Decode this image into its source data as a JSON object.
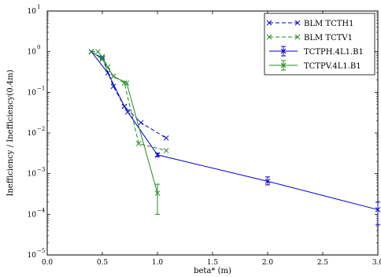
{
  "chart_data": {
    "type": "line",
    "xlabel": "beta* (m)",
    "ylabel": "Inefficiency / Inefficiency(0.4m)",
    "xlim": [
      0.0,
      3.0
    ],
    "ylim": [
      1e-05,
      10
    ],
    "yscale": "log",
    "grid": false,
    "legend_position": "top-right",
    "x_ticks": [
      "0.0",
      "0.5",
      "1.0",
      "1.5",
      "2.0",
      "2.5",
      "3.0"
    ],
    "y_ticks": [
      {
        "value": 10,
        "base": "10",
        "exp": "1"
      },
      {
        "value": 1,
        "base": "10",
        "exp": "0"
      },
      {
        "value": 0.1,
        "base": "10",
        "exp": "−1"
      },
      {
        "value": 0.01,
        "base": "10",
        "exp": "−2"
      },
      {
        "value": 0.001,
        "base": "10",
        "exp": "−3"
      },
      {
        "value": 0.0001,
        "base": "10",
        "exp": "−4"
      },
      {
        "value": 1e-05,
        "base": "10",
        "exp": "−5"
      }
    ],
    "series": [
      {
        "name": "BLM TCTH1",
        "color": "#0000cc",
        "linestyle": "dashed",
        "marker": "x",
        "x": [
          0.4,
          0.5,
          0.6,
          0.7,
          0.85,
          1.08
        ],
        "y": [
          1.0,
          0.7,
          0.14,
          0.045,
          0.018,
          0.0075
        ]
      },
      {
        "name": "BLM TCTV1",
        "color": "#228b22",
        "linestyle": "dashed",
        "marker": "x",
        "x": [
          0.4,
          0.46,
          0.5,
          0.55,
          0.6,
          0.7,
          0.83,
          1.08
        ],
        "y": [
          1.0,
          1.0,
          0.75,
          0.42,
          0.25,
          0.17,
          0.0055,
          0.0037
        ]
      },
      {
        "name": "TCTPH.4L1.B1",
        "color": "#0000cc",
        "linestyle": "solid",
        "marker": "errorbar",
        "x": [
          0.4,
          0.55,
          0.7,
          0.73,
          1.0,
          2.0,
          3.0
        ],
        "y": [
          1.0,
          0.3,
          0.045,
          0.033,
          0.0029,
          0.00065,
          0.00013
        ],
        "yerr_low": [
          null,
          null,
          null,
          null,
          0.0026,
          0.00053,
          5.5e-05
        ],
        "yerr_high": [
          null,
          null,
          null,
          null,
          0.0032,
          0.00083,
          0.0002
        ]
      },
      {
        "name": "TCTPV.4L1.B1",
        "color": "#228b22",
        "linestyle": "solid",
        "marker": "errorbar",
        "x": [
          0.4,
          0.5,
          0.6,
          0.72,
          1.0
        ],
        "y": [
          1.0,
          0.65,
          0.25,
          0.17,
          0.00033
        ],
        "yerr_low": [
          null,
          null,
          null,
          null,
          0.0001
        ],
        "yerr_high": [
          null,
          null,
          null,
          null,
          0.00055
        ]
      }
    ]
  }
}
